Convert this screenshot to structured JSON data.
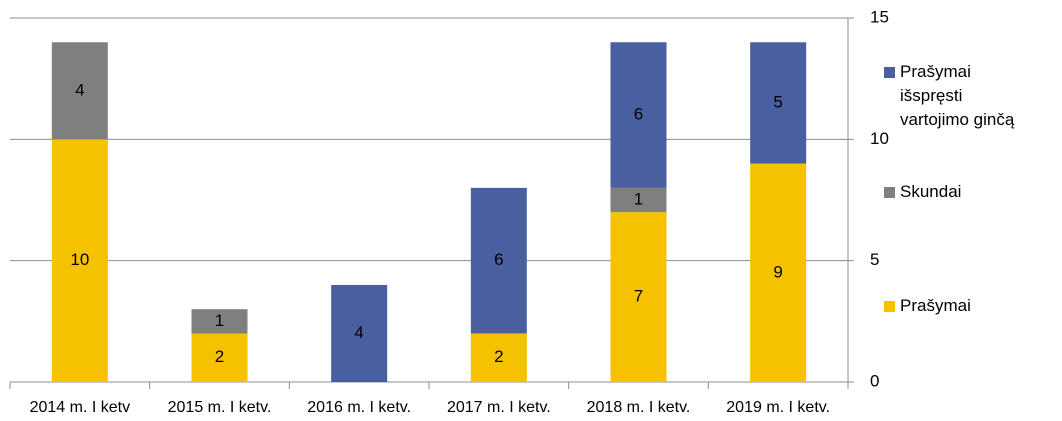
{
  "chart_data": {
    "type": "stacked_bar",
    "categories": [
      "2014 m. I ketv",
      "2015 m. I ketv.",
      "2016 m. I ketv.",
      "2017 m. I ketv.",
      "2018 m. I ketv.",
      "2019 m. I ketv."
    ],
    "series": [
      {
        "name": "Prašymai",
        "color": "#f5c200",
        "values": [
          10,
          2,
          null,
          2,
          7,
          9
        ]
      },
      {
        "name": "Skundai",
        "color": "#7f7f7f",
        "values": [
          4,
          1,
          null,
          null,
          1,
          null
        ]
      },
      {
        "name": "Prašymai išspręsti vartojimo ginčą",
        "color": "#4a5fa0",
        "values": [
          null,
          null,
          4,
          6,
          6,
          5
        ]
      }
    ],
    "ylim": [
      0,
      15
    ],
    "yticks": [
      0,
      5,
      10,
      15
    ],
    "grid": true,
    "legend": "right"
  }
}
